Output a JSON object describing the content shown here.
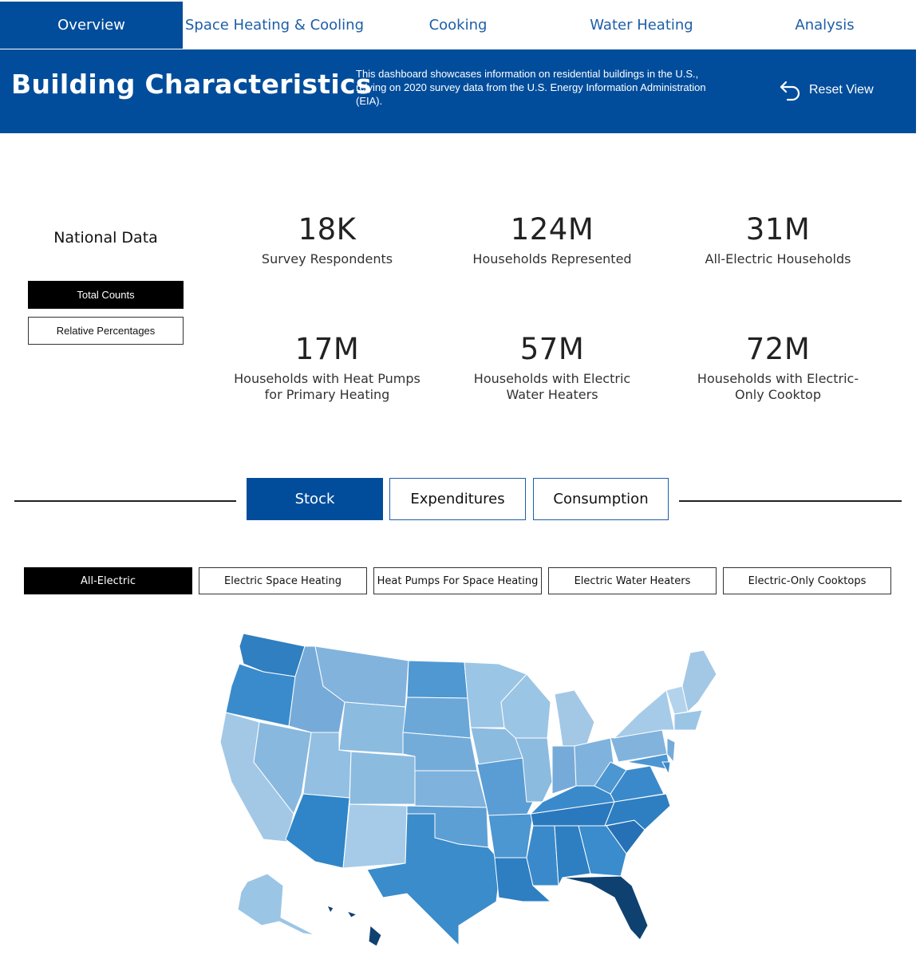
{
  "nav": {
    "tabs": [
      "Overview",
      "Space Heating & Cooling",
      "Cooking",
      "Water Heating",
      "Analysis"
    ],
    "active": "Overview"
  },
  "header": {
    "title": "Building Characteristics",
    "description": "This dashboard showcases information on residential buildings in the U.S., relying on 2020 survey data from the U.S. Energy Information Administration (EIA).",
    "reset_label": "Reset View"
  },
  "national": {
    "title": "National Data",
    "toggle": [
      "Total Counts",
      "Relative Percentages"
    ],
    "toggle_active": "Total Counts",
    "kpis": [
      {
        "value": "18K",
        "label": "Survey Respondents"
      },
      {
        "value": "124M",
        "label": "Households Represented"
      },
      {
        "value": "31M",
        "label": "All-Electric Households"
      },
      {
        "value": "17M",
        "label": "Households with Heat Pumps for Primary Heating"
      },
      {
        "value": "57M",
        "label": "Households with Electric Water Heaters"
      },
      {
        "value": "72M",
        "label": "Households with Electric-Only Cooktop"
      }
    ]
  },
  "section_tabs": [
    "Stock",
    "Expenditures",
    "Consumption"
  ],
  "section_active": "Stock",
  "filters": [
    "All-Electric",
    "Electric Space Heating",
    "Heat Pumps For Space Heating",
    "Electric Water Heaters",
    "Electric-Only Cooktops"
  ],
  "filter_active": "All-Electric",
  "colors": {
    "primary": "#024d9b",
    "nav_text": "#1d5ea8",
    "map_lightest": "#c6dbef",
    "map_light": "#9ecae1",
    "map_mid": "#6baed6",
    "map_strong": "#4292c6",
    "map_deep": "#2171b5",
    "map_darkest": "#0f4170"
  }
}
